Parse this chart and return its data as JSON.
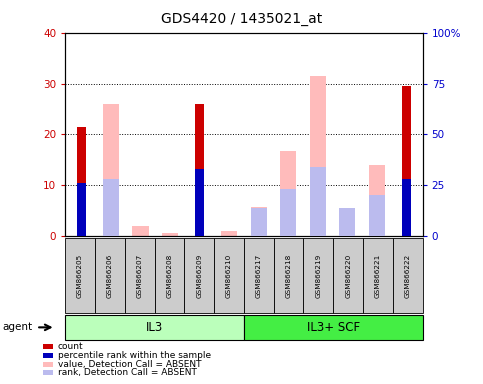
{
  "title": "GDS4420 / 1435021_at",
  "samples": [
    "GSM866205",
    "GSM866206",
    "GSM866207",
    "GSM866208",
    "GSM866209",
    "GSM866210",
    "GSM866217",
    "GSM866218",
    "GSM866219",
    "GSM866220",
    "GSM866221",
    "GSM866222"
  ],
  "count_present": [
    21.5,
    0,
    0,
    0,
    26.0,
    0,
    0,
    0,
    0,
    0,
    0,
    29.5
  ],
  "rank_present": [
    6.5,
    0,
    0,
    0,
    8.2,
    0,
    0,
    0,
    0,
    0,
    0,
    7.0
  ],
  "value_absent": [
    0,
    26.0,
    2.0,
    0.6,
    0,
    1.0,
    5.8,
    16.8,
    31.5,
    5.0,
    14.0,
    0
  ],
  "rank_absent": [
    0,
    7.0,
    0,
    0,
    0,
    0,
    3.5,
    5.8,
    8.5,
    3.5,
    5.0,
    0
  ],
  "left_ylim": [
    0,
    40
  ],
  "right_ylim": [
    0,
    25
  ],
  "left_yticks": [
    0,
    10,
    20,
    30,
    40
  ],
  "right_yticks": [
    0,
    6.25,
    12.5,
    18.75,
    25
  ],
  "right_yticklabels": [
    "0",
    "25",
    "50",
    "75",
    "100%"
  ],
  "left_color": "#cc0000",
  "right_color": "#0000cc",
  "count_color": "#cc0000",
  "rank_color": "#0000bb",
  "value_absent_color": "#ffbbbb",
  "rank_absent_color": "#bbbbee",
  "plot_bg": "#ffffff",
  "grid_yticks": [
    10,
    20,
    30
  ],
  "il3_color": "#bbffbb",
  "scf_color": "#44ee44",
  "sample_box_color": "#cccccc",
  "legend_items": [
    {
      "color": "#cc0000",
      "label": "count"
    },
    {
      "color": "#0000bb",
      "label": "percentile rank within the sample"
    },
    {
      "color": "#ffbbbb",
      "label": "value, Detection Call = ABSENT"
    },
    {
      "color": "#bbbbee",
      "label": "rank, Detection Call = ABSENT"
    }
  ]
}
